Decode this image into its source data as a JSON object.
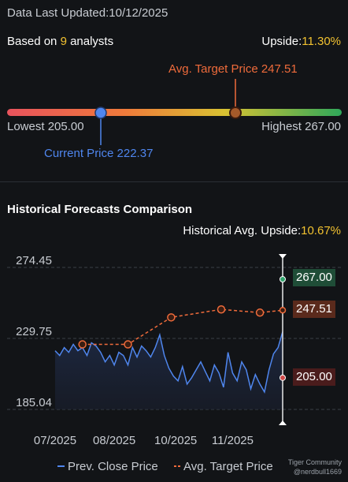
{
  "header": {
    "updated_label": "Data Last Updated:",
    "updated_date": "10/12/2025",
    "based_prefix": "Based on ",
    "analyst_count": "9",
    "based_suffix": " analysts",
    "upside_label": "Upside:",
    "upside_value": "11.30%"
  },
  "range": {
    "avg_target_label": "Avg. Target Price 247.51",
    "lowest_label": "Lowest 205.00",
    "highest_label": "Highest 267.00",
    "current_label": "Current Price 222.37",
    "lowest": 205.0,
    "highest": 267.0,
    "current": 222.37,
    "avg_target": 247.51
  },
  "historical": {
    "title": "Historical Forecasts Comparison",
    "upside_label": "Historical Avg. Upside:",
    "upside_value": "10.67%",
    "target_high": "267.00",
    "target_avg": "247.51",
    "target_low": "205.00",
    "legend_close": "Prev. Close Price",
    "legend_target": "Avg. Target Price"
  },
  "colors": {
    "background": "#121417",
    "close_line": "#4f86ee",
    "target_line": "#ef6b3b",
    "highlight": "#f2c230",
    "high_marker": "#2fa36b",
    "low_marker": "#d04848"
  },
  "watermark": {
    "brand": "Tiger Community",
    "user": "@nerdbull1669"
  },
  "chart_data": {
    "type": "line",
    "x_tick_labels": [
      "07/2025",
      "08/2025",
      "10/2025",
      "11/2025"
    ],
    "y_tick_labels": [
      "274.45",
      "229.75",
      "185.04"
    ],
    "ylim": [
      185.04,
      274.45
    ],
    "x_range": [
      0,
      100
    ],
    "x_ticks": [
      0,
      26,
      53,
      78
    ],
    "series": [
      {
        "name": "Prev. Close Price",
        "x": [
          0,
          2,
          4,
          6,
          8,
          10,
          12,
          14,
          16,
          18,
          20,
          22,
          24,
          26,
          28,
          30,
          32,
          34,
          36,
          38,
          40,
          42,
          44,
          46,
          48,
          50,
          52,
          54,
          56,
          58,
          60,
          62,
          64,
          66,
          68,
          70,
          72,
          74,
          76,
          78,
          80,
          82,
          84,
          86,
          88,
          90,
          92,
          94,
          96,
          98,
          100
        ],
        "y": [
          222,
          219,
          224,
          221,
          226,
          222,
          224,
          219,
          227,
          225,
          221,
          215,
          219,
          213,
          221,
          219,
          213,
          224,
          218,
          225,
          222,
          218,
          224,
          232,
          219,
          211,
          206,
          203,
          212,
          201,
          205,
          210,
          215,
          209,
          203,
          213,
          208,
          199,
          221,
          208,
          203,
          215,
          210,
          198,
          207,
          201,
          196,
          210,
          220,
          224,
          234
        ]
      },
      {
        "name": "Avg. Target Price",
        "x": [
          12,
          32,
          51,
          73,
          90,
          100
        ],
        "y": [
          226,
          226,
          243,
          248,
          246,
          247.5
        ]
      }
    ]
  }
}
